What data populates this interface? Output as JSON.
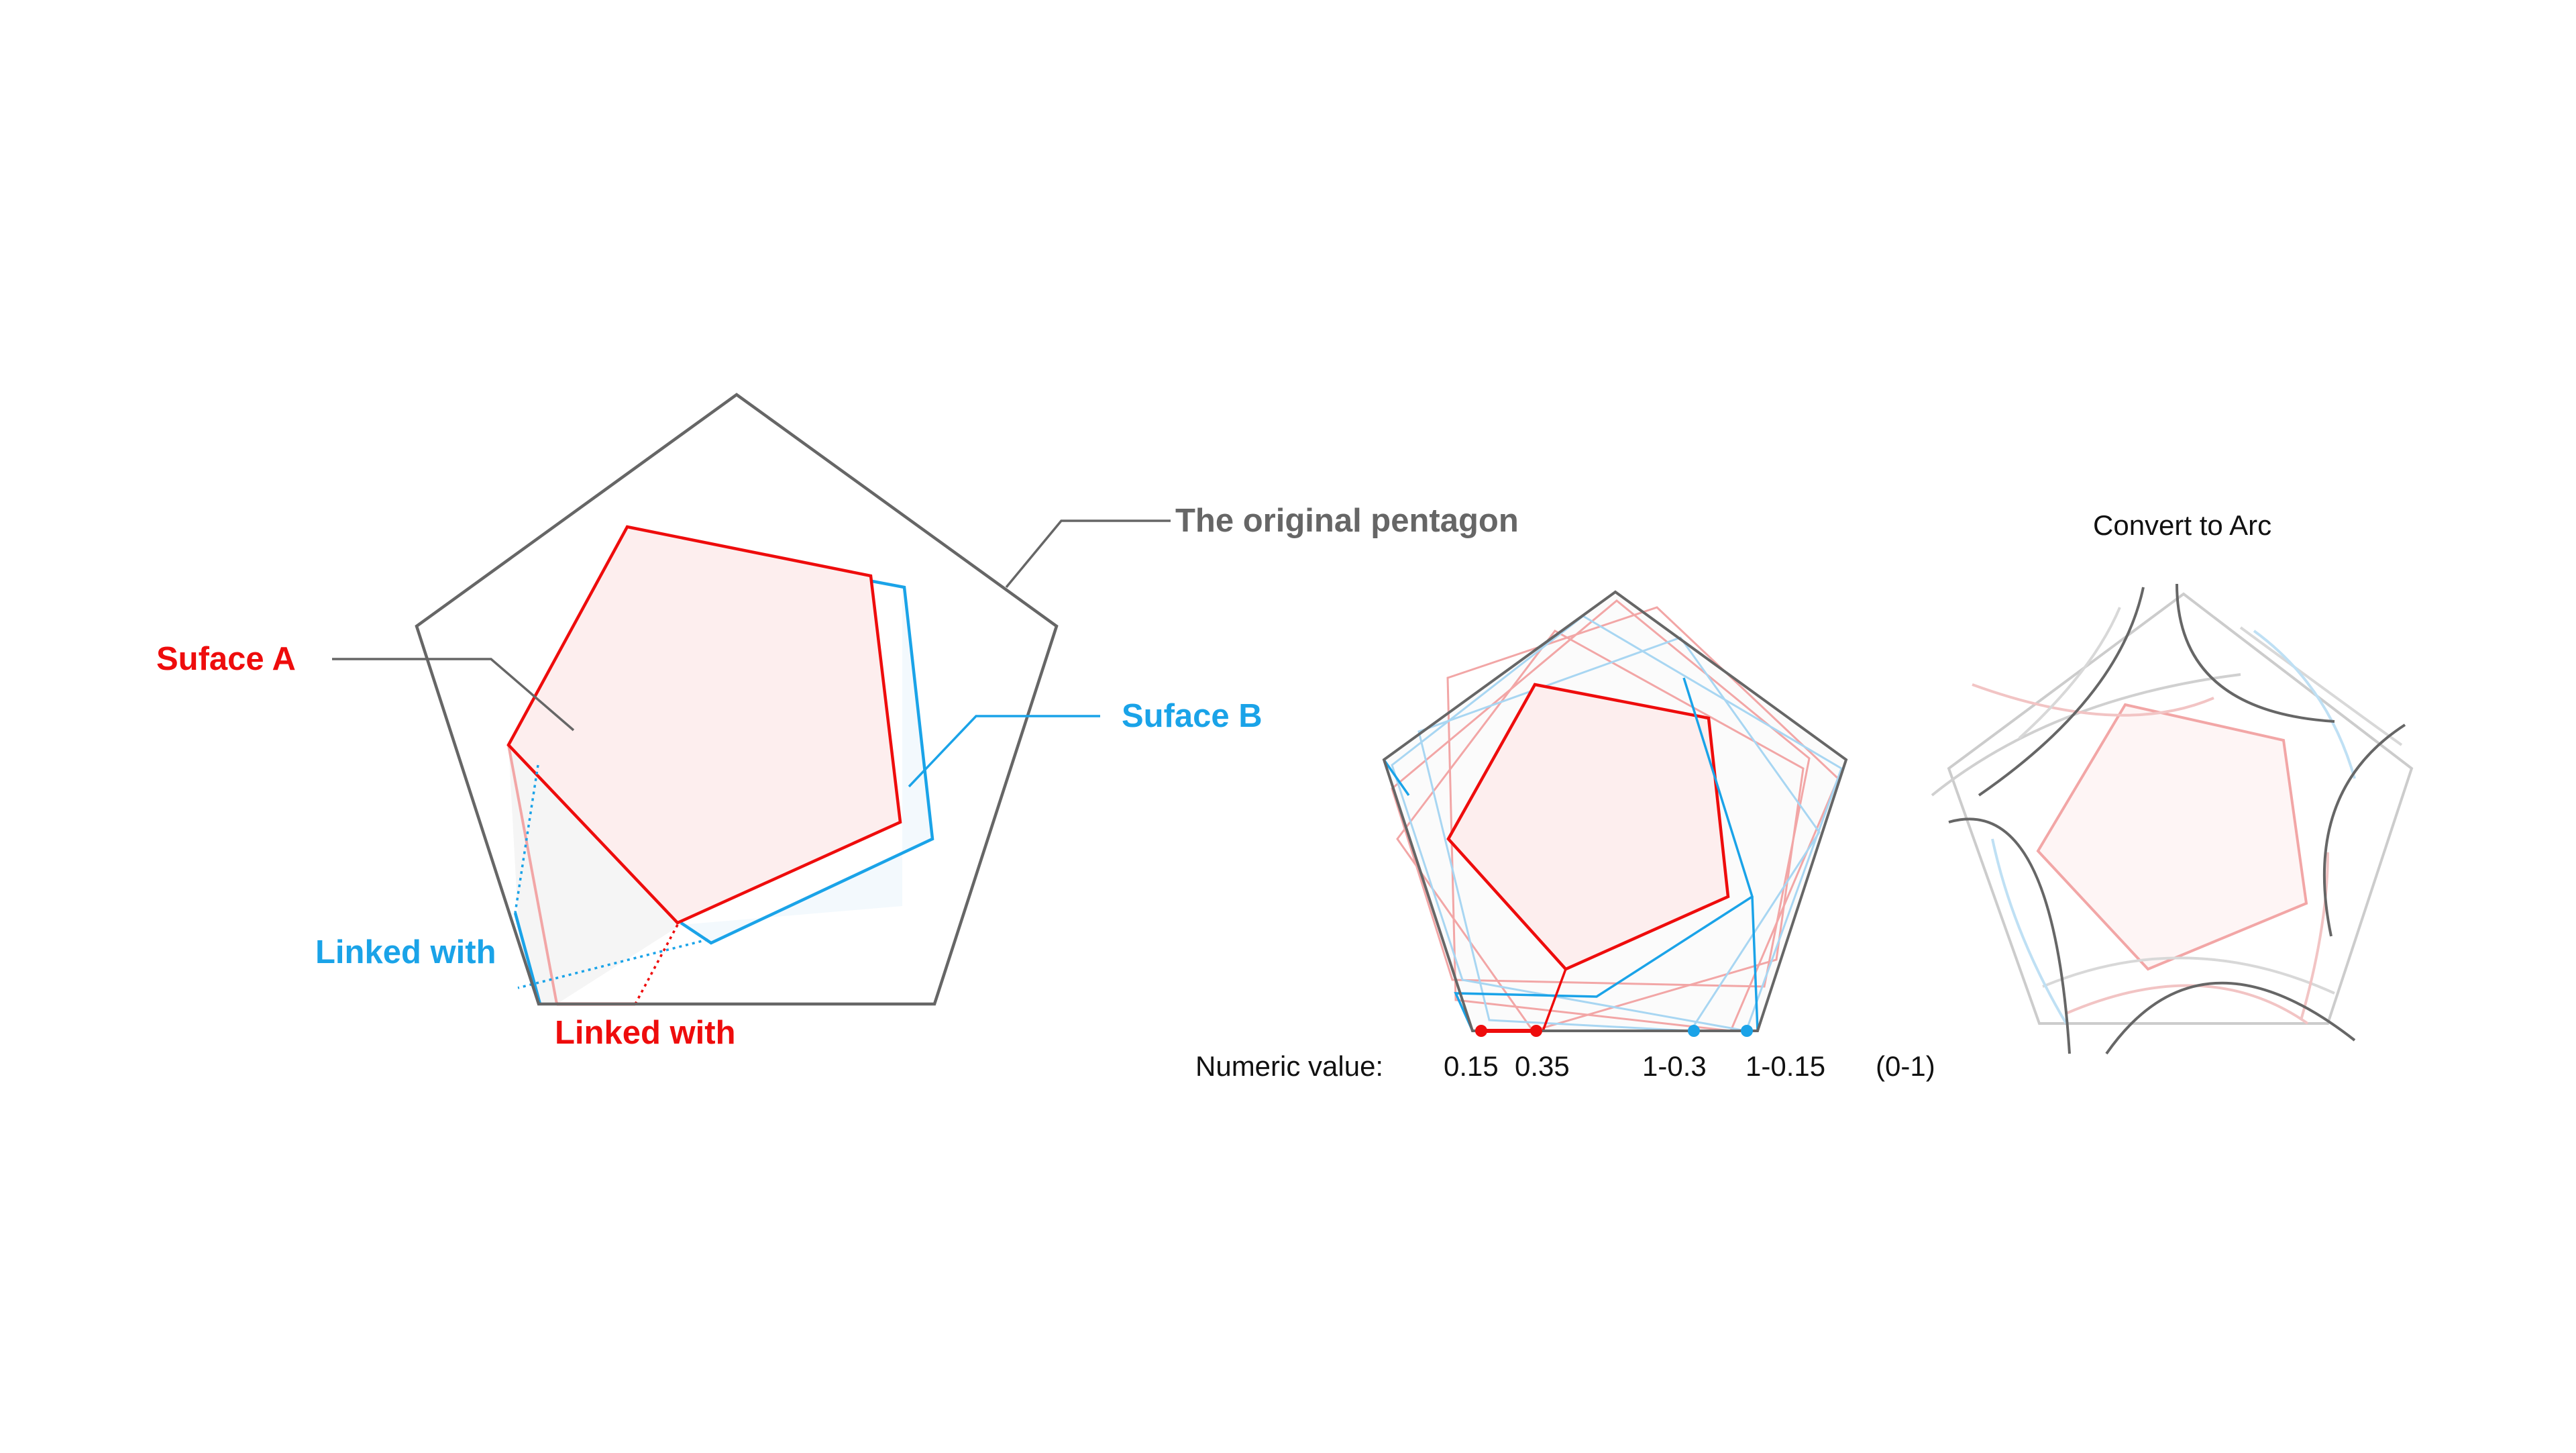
{
  "labels": {
    "original_pentagon": "The original pentagon",
    "surface_a": "Suface A",
    "surface_b": "Suface B",
    "linked_with_blue": "Linked with",
    "linked_with_red": "Linked with",
    "convert_to_arc": "Convert to Arc",
    "numeric_value": "Numeric value:",
    "val_015": "0.15",
    "val_035": "0.35",
    "val_1_03": "1-0.3",
    "val_1_015": "1-0.15",
    "range": "(0-1)"
  },
  "colors": {
    "gray": "#666666",
    "light_gray": "#c8c8c8",
    "red": "#ee0c0c",
    "light_red": "#f2a6a6",
    "blue": "#1aa3e8",
    "light_blue": "#a8d6f2",
    "fill_red": "#fdeeee",
    "fill_gray": "#f5f5f5",
    "text": "#111111"
  }
}
